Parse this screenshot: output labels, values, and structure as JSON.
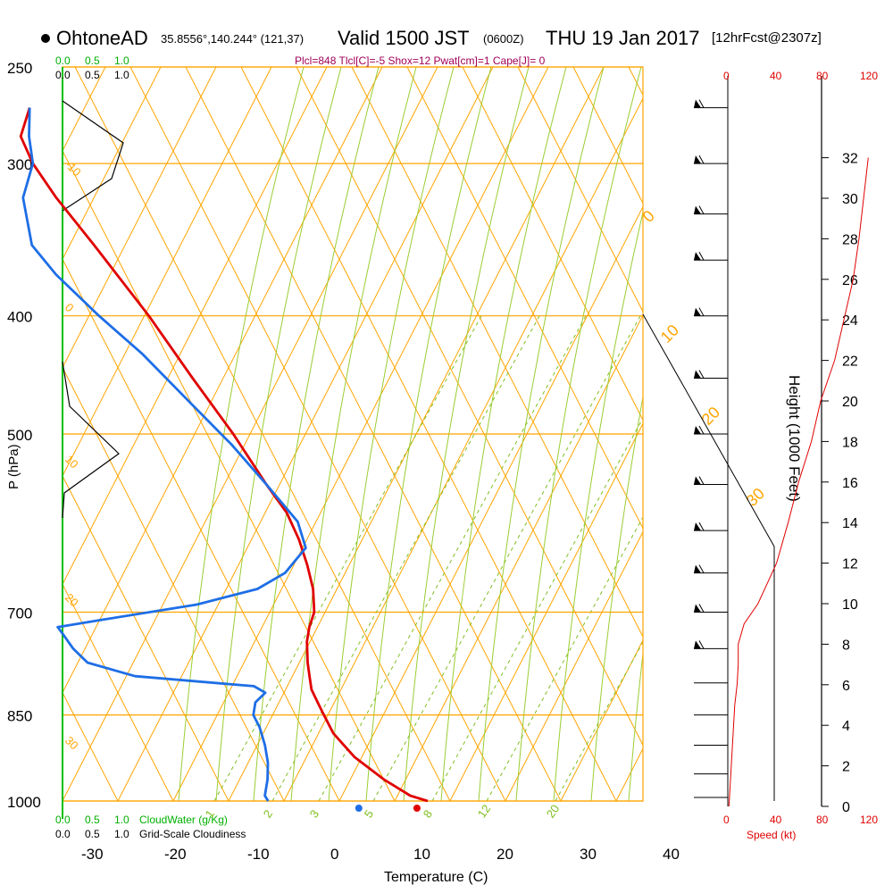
{
  "header": {
    "station": "OhtoneAD",
    "coords": "35.8556°,140.244° (121,37)",
    "valid": "Valid 1500 JST",
    "valid_z": "(0600Z)",
    "day": "THU 19 Jan 2017",
    "forecast": "[12hrFcst@2307z]",
    "indices": "Plcl=848 Tlcl[C]=-5 Shox=12 Pwat[cm]=1 Cape[J]= 0"
  },
  "labels": {
    "pressure_axis": "P (hPa)",
    "temperature_axis": "Temperature (C)",
    "height_axis": "Height (1000 Feet)",
    "speed_axis": "Speed (kt)",
    "cloud_water": "CloudWater (g/Kg)",
    "grid_cloudiness": "Grid-Scale Cloudiness",
    "mini_ticks": [
      "0.0",
      "0.5",
      "1.0"
    ],
    "speed_ticks": [
      "0",
      "40",
      "80",
      "120"
    ],
    "height_ticks": [
      "0",
      "2",
      "4",
      "6",
      "8",
      "10",
      "12",
      "14",
      "16",
      "18",
      "20",
      "22",
      "24",
      "26",
      "28",
      "30",
      "32"
    ],
    "pressure_ticks": [
      "250",
      "300",
      "400",
      "500",
      "700",
      "850",
      "1000"
    ],
    "temp_ticks": [
      "-30",
      "-20",
      "-10",
      "0",
      "10",
      "20",
      "30",
      "40"
    ],
    "mixing_ratio_labels": [
      "1",
      "2",
      "3",
      "5",
      "8",
      "12",
      "20"
    ],
    "dry_adiabat_labels": [
      "-10",
      "0",
      "10",
      "20",
      "30"
    ],
    "isotherm_labels": [
      "-10",
      "0",
      "10",
      "20",
      "30"
    ]
  },
  "chart_data": {
    "type": "skew-t",
    "xlabel": "Temperature (C)",
    "ylabel": "P (hPa)",
    "xlim": [
      -34,
      36
    ],
    "ylim": [
      1000,
      250
    ],
    "temperature": {
      "color": "#e00000",
      "points": [
        [
          1000,
          10.2
        ],
        [
          990,
          8.0
        ],
        [
          960,
          4.5
        ],
        [
          920,
          0.5
        ],
        [
          880,
          -2.5
        ],
        [
          850,
          -4.0
        ],
        [
          830,
          -5.0
        ],
        [
          810,
          -6.0
        ],
        [
          790,
          -6.5
        ],
        [
          770,
          -7.0
        ],
        [
          740,
          -7.5
        ],
        [
          720,
          -7.5
        ],
        [
          700,
          -7.2
        ],
        [
          670,
          -7.8
        ],
        [
          640,
          -9.0
        ],
        [
          610,
          -10.5
        ],
        [
          580,
          -12.5
        ],
        [
          550,
          -15.5
        ],
        [
          500,
          -20.5
        ],
        [
          450,
          -26.5
        ],
        [
          400,
          -33.0
        ],
        [
          350,
          -41.0
        ],
        [
          320,
          -46.5
        ],
        [
          300,
          -50.0
        ],
        [
          285,
          -52.0
        ],
        [
          270,
          -51.5
        ]
      ]
    },
    "dewpoint": {
      "color": "#1e6ee6",
      "points": [
        [
          1000,
          -9.0
        ],
        [
          990,
          -9.5
        ],
        [
          960,
          -9.5
        ],
        [
          930,
          -9.8
        ],
        [
          900,
          -10.5
        ],
        [
          870,
          -11.5
        ],
        [
          850,
          -12.5
        ],
        [
          830,
          -12.5
        ],
        [
          815,
          -11.5
        ],
        [
          805,
          -13.0
        ],
        [
          790,
          -27.5
        ],
        [
          770,
          -33.5
        ],
        [
          750,
          -35.5
        ],
        [
          730,
          -37.0
        ],
        [
          720,
          -37.8
        ],
        [
          710,
          -32.5
        ],
        [
          690,
          -21.5
        ],
        [
          670,
          -14.5
        ],
        [
          650,
          -11.5
        ],
        [
          620,
          -9.5
        ],
        [
          590,
          -11.0
        ],
        [
          550,
          -15.5
        ],
        [
          510,
          -20.5
        ],
        [
          470,
          -26.5
        ],
        [
          430,
          -33.0
        ],
        [
          400,
          -39.0
        ],
        [
          370,
          -45.0
        ],
        [
          350,
          -48.5
        ],
        [
          320,
          -50.5
        ],
        [
          300,
          -50.0
        ],
        [
          285,
          -51.0
        ],
        [
          270,
          -51.5
        ]
      ]
    },
    "surface_temperature": 8.7,
    "surface_dewpoint": 1.7,
    "isotherms": [
      -10,
      0,
      10,
      20,
      30
    ],
    "mixing_ratios_gkg": [
      1,
      2,
      3,
      5,
      8,
      12,
      20
    ],
    "cloud_water_gkg_range": [
      0.0,
      1.0
    ],
    "grid_cloudiness_range": [
      0.0,
      1.0
    ],
    "wind_speed_profile_kt": [
      [
        0,
        1
      ],
      [
        2,
        3
      ],
      [
        4,
        5
      ],
      [
        5,
        6
      ],
      [
        6,
        8
      ],
      [
        7,
        9
      ],
      [
        8,
        9
      ],
      [
        9,
        14
      ],
      [
        10,
        26
      ],
      [
        11,
        34
      ],
      [
        12,
        42
      ],
      [
        14,
        52
      ],
      [
        16,
        61
      ],
      [
        18,
        72
      ],
      [
        20,
        80
      ],
      [
        22,
        92
      ],
      [
        24,
        100
      ],
      [
        26,
        108
      ],
      [
        28,
        113
      ],
      [
        30,
        117
      ],
      [
        32,
        121
      ]
    ],
    "cloudiness_profile": [
      [
        300,
        0.8
      ],
      [
        270,
        0.0
      ],
      [
        320,
        0.0
      ],
      [
        440,
        0.0
      ],
      [
        480,
        0.1
      ],
      [
        520,
        0.8
      ],
      [
        545,
        0.0
      ]
    ],
    "wind_barb_pressures": [
      270,
      300,
      330,
      360,
      400,
      450,
      500,
      550,
      600,
      650,
      700,
      750,
      800,
      850,
      900,
      950,
      1000
    ]
  }
}
